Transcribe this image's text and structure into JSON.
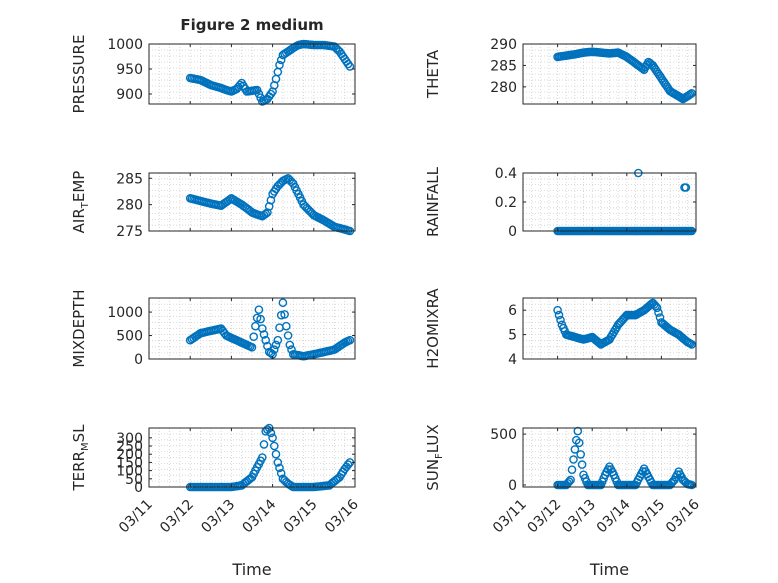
{
  "figure": {
    "title": "Figure 2 medium",
    "marker_color": "#0072BD",
    "axis_color": "#262626",
    "grid_color": "#d0d0d0"
  },
  "chart_data": [
    {
      "type": "scatter",
      "ylabel": "PRESSURE",
      "ylim": [
        880,
        1000
      ],
      "yticks": [
        900,
        950,
        1000
      ],
      "xticks": [],
      "xlabel": "",
      "grid": true,
      "anchors": [
        [
          "03/12 00:00",
          932
        ],
        [
          "03/12 06:00",
          928
        ],
        [
          "03/12 12:00",
          918
        ],
        [
          "03/12 18:00",
          912
        ],
        [
          "03/12 21:00",
          908
        ],
        [
          "03/13 00:00",
          905
        ],
        [
          "03/13 03:00",
          910
        ],
        [
          "03/13 06:00",
          922
        ],
        [
          "03/13 09:00",
          905
        ],
        [
          "03/13 15:00",
          908
        ],
        [
          "03/13 18:00",
          885
        ],
        [
          "03/13 21:00",
          890
        ],
        [
          "03/14 00:00",
          905
        ],
        [
          "03/14 02:00",
          930
        ],
        [
          "03/14 04:00",
          958
        ],
        [
          "03/14 06:00",
          978
        ],
        [
          "03/14 09:00",
          985
        ],
        [
          "03/14 12:00",
          992
        ],
        [
          "03/14 15:00",
          998
        ],
        [
          "03/14 18:00",
          1000
        ],
        [
          "03/15 00:00",
          998
        ],
        [
          "03/15 06:00",
          998
        ],
        [
          "03/15 12:00",
          995
        ],
        [
          "03/15 15:00",
          985
        ],
        [
          "03/15 18:00",
          970
        ],
        [
          "03/15 21:00",
          955
        ]
      ],
      "step_hours": 1
    },
    {
      "type": "scatter",
      "ylabel": "THETA",
      "ylim": [
        276,
        290
      ],
      "yticks": [
        280,
        285,
        290
      ],
      "xticks": [],
      "xlabel": "",
      "grid": true,
      "anchors": [
        [
          "03/12 00:00",
          287
        ],
        [
          "03/12 06:00",
          287.3
        ],
        [
          "03/12 12:00",
          287.6
        ],
        [
          "03/12 18:00",
          288
        ],
        [
          "03/13 00:00",
          288.2
        ],
        [
          "03/13 06:00",
          288
        ],
        [
          "03/13 12:00",
          287.8
        ],
        [
          "03/13 18:00",
          288
        ],
        [
          "03/14 00:00",
          287
        ],
        [
          "03/14 06:00",
          285.5
        ],
        [
          "03/14 12:00",
          284
        ],
        [
          "03/14 15:00",
          285.8
        ],
        [
          "03/14 18:00",
          285
        ],
        [
          "03/15 00:00",
          282
        ],
        [
          "03/15 06:00",
          279
        ],
        [
          "03/15 12:00",
          277.8
        ],
        [
          "03/15 15:00",
          277.2
        ],
        [
          "03/15 18:00",
          277.8
        ],
        [
          "03/15 21:00",
          278.5
        ]
      ],
      "step_hours": 1
    },
    {
      "type": "scatter",
      "ylabel": "AIR_TEMP",
      "ylim": [
        275,
        286
      ],
      "yticks": [
        275,
        280,
        285
      ],
      "xticks": [],
      "xlabel": "",
      "grid": true,
      "anchors": [
        [
          "03/12 00:00",
          281.2
        ],
        [
          "03/12 06:00",
          280.7
        ],
        [
          "03/12 12:00",
          280.2
        ],
        [
          "03/12 18:00",
          279.8
        ],
        [
          "03/13 00:00",
          281.2
        ],
        [
          "03/13 06:00",
          280
        ],
        [
          "03/13 09:00",
          279.3
        ],
        [
          "03/13 12:00",
          278.5
        ],
        [
          "03/13 18:00",
          277.8
        ],
        [
          "03/13 21:00",
          278.5
        ],
        [
          "03/14 00:00",
          282
        ],
        [
          "03/14 03:00",
          283.5
        ],
        [
          "03/14 06:00",
          284.5
        ],
        [
          "03/14 09:00",
          285
        ],
        [
          "03/14 12:00",
          284
        ],
        [
          "03/14 15:00",
          282
        ],
        [
          "03/14 18:00",
          280
        ],
        [
          "03/15 00:00",
          278
        ],
        [
          "03/15 06:00",
          277
        ],
        [
          "03/15 12:00",
          275.8
        ],
        [
          "03/15 18:00",
          275.3
        ],
        [
          "03/15 21:00",
          275
        ]
      ],
      "step_hours": 1
    },
    {
      "type": "scatter",
      "ylabel": "RAINFALL",
      "ylim": [
        0,
        0.4
      ],
      "yticks": [
        0,
        0.2,
        0.4
      ],
      "xticks": [],
      "xlabel": "",
      "grid": true,
      "anchors": [
        [
          "03/12 00:00",
          0
        ],
        [
          "03/15 21:00",
          0
        ]
      ],
      "extra_points": [
        [
          "03/14 08:00",
          0.4
        ],
        [
          "03/15 16:00",
          0.3
        ],
        [
          "03/15 17:00",
          0.3
        ]
      ],
      "step_hours": 1
    },
    {
      "type": "scatter",
      "ylabel": "MIXDEPTH",
      "ylim": [
        0,
        1300
      ],
      "yticks": [
        0,
        500,
        1000
      ],
      "xticks": [],
      "xlabel": "",
      "grid": true,
      "anchors": [
        [
          "03/12 00:00",
          400
        ],
        [
          "03/12 06:00",
          550
        ],
        [
          "03/12 12:00",
          600
        ],
        [
          "03/12 18:00",
          650
        ],
        [
          "03/12 21:00",
          500
        ],
        [
          "03/13 00:00",
          450
        ],
        [
          "03/13 06:00",
          350
        ],
        [
          "03/13 09:00",
          300
        ],
        [
          "03/13 12:00",
          250
        ],
        [
          "03/13 14:00",
          700
        ],
        [
          "03/13 16:00",
          1050
        ],
        [
          "03/13 18:00",
          650
        ],
        [
          "03/13 20:00",
          400
        ],
        [
          "03/13 22:00",
          150
        ],
        [
          "03/14 00:00",
          100
        ],
        [
          "03/14 03:00",
          400
        ],
        [
          "03/14 06:00",
          1200
        ],
        [
          "03/14 08:00",
          700
        ],
        [
          "03/14 10:00",
          300
        ],
        [
          "03/14 12:00",
          100
        ],
        [
          "03/14 18:00",
          60
        ],
        [
          "03/15 00:00",
          100
        ],
        [
          "03/15 06:00",
          150
        ],
        [
          "03/15 12:00",
          200
        ],
        [
          "03/15 18:00",
          350
        ],
        [
          "03/15 21:00",
          400
        ]
      ],
      "step_hours": 1
    },
    {
      "type": "scatter",
      "ylabel": "H2OMIXRA",
      "ylim": [
        4,
        6.5
      ],
      "yticks": [
        4,
        5,
        6
      ],
      "xticks": [],
      "xlabel": "",
      "grid": true,
      "anchors": [
        [
          "03/12 00:00",
          6
        ],
        [
          "03/12 03:00",
          5.4
        ],
        [
          "03/12 06:00",
          5
        ],
        [
          "03/12 12:00",
          4.9
        ],
        [
          "03/12 18:00",
          4.8
        ],
        [
          "03/13 00:00",
          4.9
        ],
        [
          "03/13 06:00",
          4.6
        ],
        [
          "03/13 12:00",
          4.8
        ],
        [
          "03/13 18:00",
          5.4
        ],
        [
          "03/14 00:00",
          5.8
        ],
        [
          "03/14 06:00",
          5.8
        ],
        [
          "03/14 12:00",
          6
        ],
        [
          "03/14 18:00",
          6.3
        ],
        [
          "03/14 21:00",
          6.1
        ],
        [
          "03/15 00:00",
          5.5
        ],
        [
          "03/15 06:00",
          5.2
        ],
        [
          "03/15 12:00",
          5
        ],
        [
          "03/15 18:00",
          4.7
        ],
        [
          "03/15 21:00",
          4.6
        ]
      ],
      "step_hours": 1
    },
    {
      "type": "scatter",
      "ylabel": "TERR_MSL",
      "ylim": [
        0,
        360
      ],
      "yticks": [
        0,
        50,
        100,
        150,
        200,
        250,
        300
      ],
      "xticks": [
        "03/11",
        "03/12",
        "03/13",
        "03/14",
        "03/15",
        "03/16"
      ],
      "xlabel": "Time",
      "grid": true,
      "anchors": [
        [
          "03/12 00:00",
          0
        ],
        [
          "03/13 00:00",
          0
        ],
        [
          "03/13 06:00",
          10
        ],
        [
          "03/13 12:00",
          60
        ],
        [
          "03/13 15:00",
          120
        ],
        [
          "03/13 18:00",
          180
        ],
        [
          "03/13 20:00",
          340
        ],
        [
          "03/13 22:00",
          360
        ],
        [
          "03/14 00:00",
          300
        ],
        [
          "03/14 03:00",
          150
        ],
        [
          "03/14 06:00",
          50
        ],
        [
          "03/14 09:00",
          20
        ],
        [
          "03/14 12:00",
          0
        ],
        [
          "03/15 00:00",
          0
        ],
        [
          "03/15 09:00",
          10
        ],
        [
          "03/15 15:00",
          60
        ],
        [
          "03/15 18:00",
          110
        ],
        [
          "03/15 21:00",
          150
        ]
      ],
      "step_hours": 1
    },
    {
      "type": "scatter",
      "ylabel": "SUN_FLUX",
      "ylim": [
        -20,
        560
      ],
      "yticks": [
        0,
        500
      ],
      "xticks": [
        "03/11",
        "03/12",
        "03/13",
        "03/14",
        "03/15",
        "03/16"
      ],
      "xlabel": "Time",
      "grid": true,
      "anchors": [
        [
          "03/12 00:00",
          0
        ],
        [
          "03/12 06:00",
          0
        ],
        [
          "03/12 09:00",
          50
        ],
        [
          "03/12 12:00",
          350
        ],
        [
          "03/12 14:00",
          530
        ],
        [
          "03/12 16:00",
          300
        ],
        [
          "03/12 18:00",
          100
        ],
        [
          "03/12 21:00",
          0
        ],
        [
          "03/13 06:00",
          0
        ],
        [
          "03/13 09:00",
          100
        ],
        [
          "03/13 12:00",
          180
        ],
        [
          "03/13 15:00",
          100
        ],
        [
          "03/13 18:00",
          0
        ],
        [
          "03/14 06:00",
          0
        ],
        [
          "03/14 09:00",
          80
        ],
        [
          "03/14 12:00",
          160
        ],
        [
          "03/14 15:00",
          80
        ],
        [
          "03/14 18:00",
          0
        ],
        [
          "03/15 06:00",
          0
        ],
        [
          "03/15 09:00",
          50
        ],
        [
          "03/15 12:00",
          130
        ],
        [
          "03/15 15:00",
          50
        ],
        [
          "03/15 18:00",
          10
        ],
        [
          "03/15 21:00",
          0
        ]
      ],
      "step_hours": 1
    }
  ]
}
